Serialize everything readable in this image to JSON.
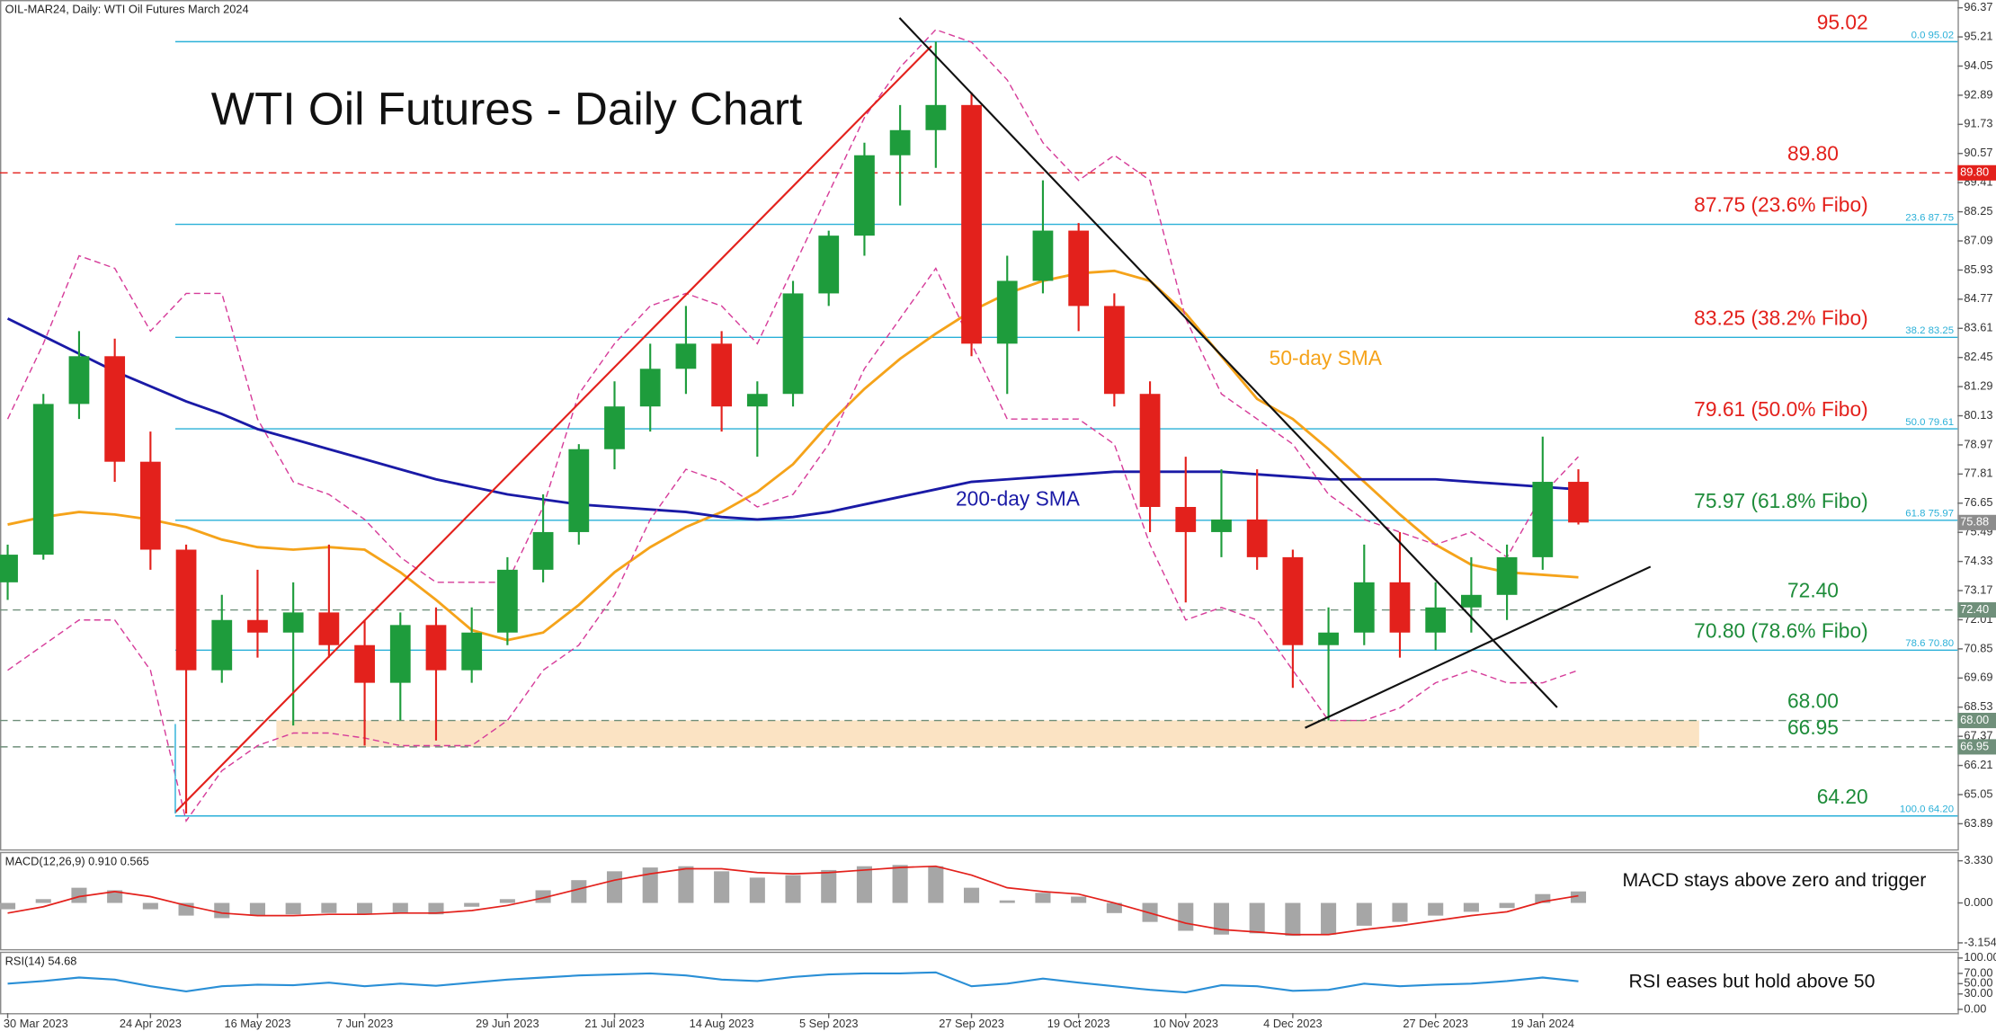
{
  "header": "OIL-MAR24, Daily:  WTI Oil Futures March 2024",
  "chart_data": [
    {
      "type": "candlestick",
      "title": "WTI Oil Futures - Daily Chart",
      "categories": [
        "30 Mar 2023",
        null,
        null,
        null,
        "24 Apr 2023",
        null,
        null,
        "16 May 2023",
        null,
        null,
        "7 Jun 2023",
        null,
        null,
        null,
        "29 Jun 2023",
        null,
        null,
        "21 Jul 2023",
        null,
        null,
        "14 Aug 2023",
        null,
        null,
        "5 Sep 2023",
        null,
        null,
        null,
        "27 Sep 2023",
        null,
        null,
        "19 Oct 2023",
        null,
        null,
        "10 Nov 2023",
        null,
        null,
        "4 Dec 2023",
        null,
        null,
        null,
        "27 Dec 2023",
        null,
        null,
        "19 Jan 2024",
        null
      ],
      "open": [
        73.5,
        74.6,
        80.6,
        82.5,
        78.3,
        74.8,
        70.0,
        72.0,
        71.5,
        72.3,
        71.0,
        69.5,
        71.8,
        70.0,
        71.5,
        74.0,
        75.5,
        78.8,
        80.5,
        82.0,
        83.0,
        80.5,
        81.0,
        85.0,
        87.3,
        90.5,
        91.5,
        92.5,
        83.0,
        85.5,
        87.5,
        84.5,
        81.0,
        76.5,
        75.5,
        76.0,
        74.5,
        71.0,
        71.5,
        73.5,
        71.5,
        72.5,
        73.0,
        74.5,
        77.5
      ],
      "high": [
        75.0,
        81.0,
        83.5,
        83.2,
        79.5,
        75.0,
        73.0,
        74.0,
        73.5,
        75.0,
        72.0,
        72.3,
        72.5,
        72.5,
        74.5,
        77.0,
        79.0,
        81.5,
        83.0,
        84.5,
        83.5,
        81.5,
        85.5,
        87.5,
        91.0,
        92.5,
        95.02,
        93.0,
        86.5,
        89.5,
        87.8,
        85.0,
        81.5,
        78.5,
        78.0,
        78.0,
        74.8,
        72.5,
        75.0,
        75.5,
        73.5,
        74.5,
        75.0,
        79.3,
        78.0
      ],
      "low": [
        72.8,
        74.4,
        80.0,
        77.5,
        74.0,
        64.3,
        69.5,
        70.5,
        67.8,
        70.5,
        67.0,
        68.0,
        67.2,
        69.5,
        71.0,
        73.5,
        75.0,
        78.0,
        79.5,
        81.0,
        79.5,
        78.5,
        80.5,
        84.5,
        86.5,
        88.5,
        90.0,
        82.5,
        81.0,
        85.0,
        83.5,
        80.5,
        75.5,
        72.7,
        74.5,
        74.0,
        69.3,
        68.0,
        71.0,
        70.5,
        70.8,
        71.5,
        72.0,
        74.0,
        75.8
      ],
      "close": [
        74.6,
        80.6,
        82.5,
        78.3,
        74.8,
        70.0,
        72.0,
        71.5,
        72.3,
        71.0,
        69.5,
        71.8,
        70.0,
        71.5,
        74.0,
        75.5,
        78.8,
        80.5,
        82.0,
        83.0,
        80.5,
        81.0,
        85.0,
        87.3,
        90.5,
        91.5,
        92.5,
        83.0,
        85.5,
        87.5,
        84.5,
        81.0,
        76.5,
        75.5,
        76.0,
        74.5,
        71.0,
        71.5,
        73.5,
        71.5,
        72.5,
        73.0,
        74.5,
        77.5,
        75.88
      ],
      "up_color": "#1e9c3c",
      "down_color": "#e3211c",
      "overlays": [
        {
          "name": "50-day SMA",
          "color": "#f5a31a",
          "values": [
            75.8,
            76.1,
            76.3,
            76.2,
            76.0,
            75.7,
            75.2,
            74.9,
            74.8,
            74.9,
            74.8,
            73.9,
            72.8,
            71.6,
            71.2,
            71.5,
            72.6,
            73.9,
            74.9,
            75.7,
            76.3,
            77.1,
            78.2,
            79.8,
            81.2,
            82.4,
            83.4,
            84.3,
            85.0,
            85.5,
            85.8,
            85.9,
            85.5,
            84.2,
            82.5,
            80.8,
            80.0,
            78.8,
            77.5,
            76.2,
            75.0,
            74.2,
            73.9,
            73.8,
            73.7
          ]
        },
        {
          "name": "200-day SMA",
          "color": "#1a1aa6",
          "values": [
            84.0,
            83.3,
            82.6,
            81.9,
            81.3,
            80.7,
            80.2,
            79.6,
            79.2,
            78.8,
            78.4,
            78.0,
            77.6,
            77.3,
            77.0,
            76.8,
            76.6,
            76.5,
            76.4,
            76.3,
            76.1,
            76.0,
            76.1,
            76.3,
            76.6,
            76.9,
            77.2,
            77.5,
            77.6,
            77.7,
            77.8,
            77.9,
            77.9,
            77.9,
            77.9,
            77.8,
            77.7,
            77.6,
            77.6,
            77.6,
            77.6,
            77.5,
            77.4,
            77.3,
            77.2
          ]
        },
        {
          "color": "#d63d9a",
          "dash": true,
          "values": [
            80,
            83,
            86.5,
            86,
            83.5,
            85,
            85,
            80,
            77.5,
            77,
            76,
            74.5,
            73.5,
            73.5,
            73.5,
            76.5,
            81,
            83,
            84.5,
            85,
            84.5,
            83,
            86,
            89,
            92,
            94,
            95.5,
            95,
            93.5,
            91,
            89.5,
            90.5,
            89.5,
            84,
            81,
            80,
            79,
            77,
            76,
            75.5,
            75,
            75.5,
            74.5,
            77,
            78.5
          ]
        },
        {
          "color": "#d63d9a",
          "dash": true,
          "values": [
            70,
            71,
            72,
            72,
            70,
            64,
            66,
            67,
            67.5,
            67.5,
            67.3,
            67,
            67,
            67,
            68,
            70,
            71,
            73,
            76,
            78,
            77.5,
            76.5,
            77,
            79,
            82,
            84,
            86,
            83,
            80,
            80,
            80,
            79,
            75,
            72,
            72.5,
            72,
            70,
            68,
            68,
            68.5,
            69.5,
            70,
            69.5,
            69.5,
            70
          ]
        }
      ],
      "levels": [
        {
          "value": 95.02,
          "label": "95.02",
          "fibo": "0.0 95.02",
          "color": "#2ab0d8",
          "label_color": "#e3211c"
        },
        {
          "value": 89.8,
          "label": "89.80",
          "color": "#e3211c",
          "dash": true,
          "box": true,
          "label_color": "#e3211c"
        },
        {
          "value": 87.75,
          "label": "87.75 (23.6% Fibo)",
          "fibo": "23.6 87.75",
          "color": "#2ab0d8",
          "label_color": "#e3211c"
        },
        {
          "value": 83.25,
          "label": "83.25 (38.2% Fibo)",
          "fibo": "38.2 83.25",
          "color": "#2ab0d8",
          "label_color": "#e3211c"
        },
        {
          "value": 79.61,
          "label": "79.61 (50.0% Fibo)",
          "fibo": "50.0 79.61",
          "color": "#2ab0d8",
          "label_color": "#e3211c"
        },
        {
          "value": 75.97,
          "label": "75.97 (61.8% Fibo)",
          "fibo": "61.8 75.97",
          "color": "#2ab0d8",
          "label_color": "#1e8c3a"
        },
        {
          "value": 72.4,
          "label": "72.40",
          "color": "#6f8f7a",
          "dash": true,
          "box": true,
          "label_color": "#1e8c3a"
        },
        {
          "value": 70.8,
          "label": "70.80 (78.6% Fibo)",
          "fibo": "78.6 70.80",
          "color": "#2ab0d8",
          "label_color": "#1e8c3a"
        },
        {
          "value": 68.0,
          "label": "68.00",
          "color": "#6f8f7a",
          "dash": true,
          "box": true,
          "zone": true,
          "label_color": "#1e8c3a"
        },
        {
          "value": 66.95,
          "label": "66.95",
          "color": "#6f8f7a",
          "dash": true,
          "box": true,
          "zone": true,
          "label_color": "#1e8c3a"
        },
        {
          "value": 64.2,
          "label": "64.20",
          "fibo": "100.0 64.20",
          "color": "#2ab0d8",
          "label_color": "#1e8c3a"
        }
      ],
      "zone_color": "#fbe3c3",
      "last_price": 75.88,
      "last_price_color": "#8c8c8c",
      "ylim": [
        62.87,
        96.68
      ],
      "yticks": [
        96.37,
        95.21,
        94.05,
        92.89,
        91.73,
        90.57,
        89.41,
        88.25,
        87.09,
        85.93,
        84.77,
        83.61,
        82.45,
        81.29,
        80.13,
        78.97,
        77.81,
        76.65,
        75.49,
        74.33,
        73.17,
        72.01,
        70.85,
        69.69,
        68.53,
        67.37,
        66.21,
        65.05,
        63.89
      ]
    },
    {
      "type": "macd",
      "title": "MACD(12,26,9) 0.910 0.565",
      "annotation": "MACD stays above zero and trigger",
      "histogram": [
        -0.5,
        0.3,
        1.2,
        1.0,
        -0.5,
        -1.0,
        -1.2,
        -1.0,
        -0.9,
        -0.8,
        -0.9,
        -0.8,
        -0.9,
        -0.3,
        0.3,
        1.0,
        1.8,
        2.5,
        2.8,
        2.9,
        2.5,
        2.0,
        2.2,
        2.6,
        2.9,
        3.0,
        2.9,
        1.2,
        0.2,
        0.8,
        0.5,
        -0.8,
        -1.5,
        -2.2,
        -2.5,
        -2.4,
        -2.6,
        -2.5,
        -1.8,
        -1.5,
        -1.0,
        -0.7,
        -0.4,
        0.7,
        0.91
      ],
      "histogram_color": "#a6a6a6",
      "signal": [
        -0.8,
        -0.3,
        0.5,
        0.9,
        0.5,
        -0.2,
        -0.8,
        -1.0,
        -1.0,
        -0.9,
        -0.9,
        -0.8,
        -0.8,
        -0.6,
        -0.2,
        0.4,
        1.1,
        1.8,
        2.3,
        2.7,
        2.7,
        2.4,
        2.3,
        2.4,
        2.6,
        2.8,
        2.9,
        2.2,
        1.2,
        0.9,
        0.7,
        0.0,
        -0.8,
        -1.6,
        -2.1,
        -2.3,
        -2.5,
        -2.5,
        -2.1,
        -1.8,
        -1.4,
        -1.0,
        -0.7,
        0.1,
        0.565
      ],
      "signal_color": "#e3211c",
      "ylim": [
        -3.65,
        3.93
      ],
      "yticks": [
        {
          "value": 3.33,
          "label": "3.330"
        },
        {
          "value": 0,
          "label": "0.000"
        },
        -3.154
      ]
    },
    {
      "type": "line",
      "title": "RSI(14) 54.68",
      "annotation": "RSI eases but hold above 50",
      "values": [
        50,
        55,
        62,
        58,
        45,
        35,
        45,
        48,
        47,
        52,
        45,
        50,
        46,
        52,
        58,
        62,
        66,
        68,
        70,
        66,
        58,
        55,
        63,
        68,
        70,
        70,
        72,
        45,
        50,
        60,
        52,
        45,
        38,
        33,
        47,
        45,
        36,
        38,
        50,
        45,
        48,
        50,
        55,
        62,
        54.68
      ],
      "color": "#2a8fd6",
      "ylim": [
        -7.3,
        109.8
      ],
      "yticks": [
        {
          "value": 100,
          "label": "100.00"
        },
        {
          "value": 70,
          "label": "70.00"
        },
        {
          "value": 50,
          "label": "50.00"
        },
        {
          "value": 30,
          "label": "30.00"
        },
        {
          "value": 0,
          "label": "0.00"
        }
      ]
    }
  ]
}
